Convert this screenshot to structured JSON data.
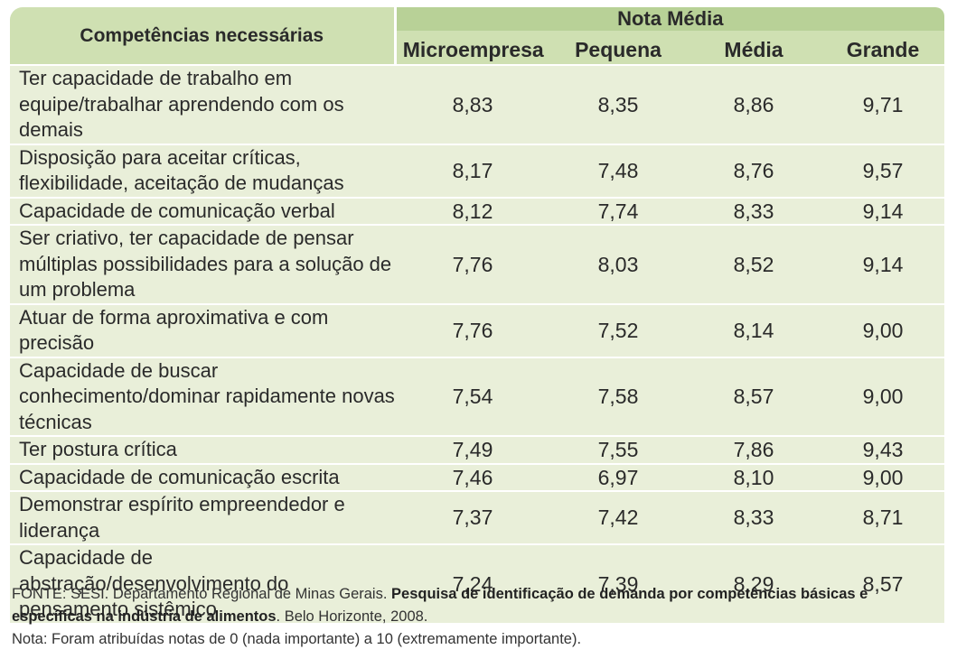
{
  "table": {
    "header_main": "Competências necessárias",
    "header_group": "Nota Média",
    "columns": [
      "Microempresa",
      "Pequena",
      "Média",
      "Grande"
    ],
    "rows": [
      {
        "label": "Ter capacidade de trabalho em equipe/trabalhar aprendendo com os demais",
        "values": [
          "8,83",
          "8,35",
          "8,86",
          "9,71"
        ]
      },
      {
        "label": "Disposição para aceitar críticas, flexibilidade, aceitação de mudanças",
        "values": [
          "8,17",
          "7,48",
          "8,76",
          "9,57"
        ]
      },
      {
        "label": "Capacidade de comunicação verbal",
        "values": [
          "8,12",
          "7,74",
          "8,33",
          "9,14"
        ]
      },
      {
        "label": "Ser criativo, ter capacidade de pensar múltiplas possibilidades para a solução de um problema",
        "values": [
          "7,76",
          "8,03",
          "8,52",
          "9,14"
        ]
      },
      {
        "label": "Atuar de forma aproximativa e com precisão",
        "values": [
          "7,76",
          "7,52",
          "8,14",
          "9,00"
        ]
      },
      {
        "label": "Capacidade de buscar conhecimento/dominar rapidamente novas técnicas",
        "values": [
          "7,54",
          "7,58",
          "8,57",
          "9,00"
        ]
      },
      {
        "label": "Ter postura crítica",
        "values": [
          "7,49",
          "7,55",
          "7,86",
          "9,43"
        ]
      },
      {
        "label": "Capacidade de comunicação escrita",
        "values": [
          "7,46",
          "6,97",
          "8,10",
          "9,00"
        ]
      },
      {
        "label": "Demonstrar espírito empreendedor e liderança",
        "values": [
          "7,37",
          "7,42",
          "8,33",
          "8,71"
        ]
      },
      {
        "label": "Capacidade de abstração/desenvolvimento do pensamento sistêmico",
        "values": [
          "7,24",
          "7,39",
          "8,29",
          "8,57"
        ]
      }
    ]
  },
  "source": {
    "prefix": "FONTE: SESI. Departamento Regional de Minas Gerais.",
    "title": "Pesquisa de identificação de demanda por competências básicas e específicas na indústria de alimentos",
    "suffix": ". Belo Horizonte, 2008.",
    "note": "Nota: Foram atribuídas notas de 0 (nada importante) a 10 (extremamente importante)."
  },
  "colors": {
    "header_light": "#cfe0b2",
    "header_dark": "#b8d197",
    "body_bg": "#e9efd9"
  }
}
